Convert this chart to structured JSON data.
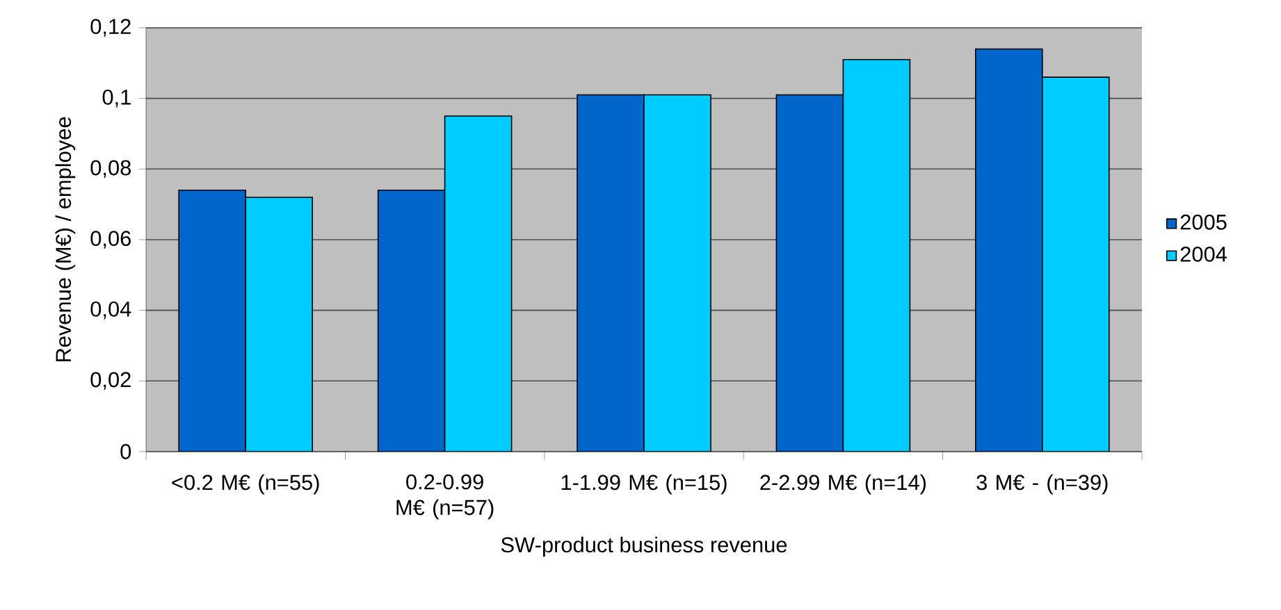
{
  "chart_data": {
    "type": "bar",
    "xlabel": "SW-product business revenue",
    "ylabel": "Revenue (M€) / employee",
    "categories": [
      "<0.2 M€ (n=55)",
      "0.2-0.99 M€ (n=57)",
      "1-1.99 M€ (n=15)",
      "2-2.99 M€ (n=14)",
      "3 M€ - (n=39)"
    ],
    "series": [
      {
        "name": "2005",
        "color": "#0066cc",
        "values": [
          0.074,
          0.074,
          0.101,
          0.101,
          0.114
        ]
      },
      {
        "name": "2004",
        "color": "#00ccff",
        "values": [
          0.072,
          0.095,
          0.101,
          0.111,
          0.106
        ]
      }
    ],
    "ylim": [
      0,
      0.12
    ],
    "yticks": [
      0,
      {
        "value": 0.02,
        "label": "0,02"
      },
      {
        "value": 0.04,
        "label": "0,04"
      },
      {
        "value": 0.06,
        "label": "0,06"
      },
      {
        "value": 0.08,
        "label": "0,08"
      },
      {
        "value": 0.1,
        "label": "0,1"
      },
      {
        "value": 0.12,
        "label": "0,12"
      }
    ],
    "grid": "y",
    "legend": "right"
  }
}
